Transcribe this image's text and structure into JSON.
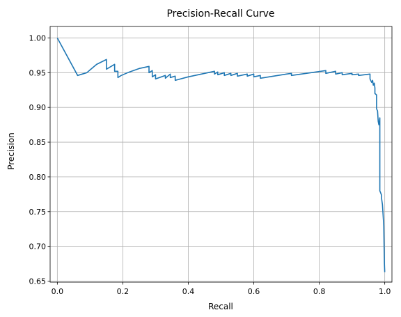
{
  "chart_data": {
    "type": "line",
    "title": "Precision-Recall Curve",
    "xlabel": "Recall",
    "ylabel": "Precision",
    "xlim": [
      -0.022,
      1.022
    ],
    "ylim": [
      0.6485,
      1.0165
    ],
    "grid": true,
    "line_color": "#1f77b4",
    "x_ticks": [
      0.0,
      0.2,
      0.4,
      0.6,
      0.8,
      1.0
    ],
    "x_tick_labels": [
      "0.0",
      "0.2",
      "0.4",
      "0.6",
      "0.8",
      "1.0"
    ],
    "y_ticks": [
      0.65,
      0.7,
      0.75,
      0.8,
      0.85,
      0.9,
      0.95,
      1.0
    ],
    "y_tick_labels": [
      "0.65",
      "0.70",
      "0.75",
      "0.80",
      "0.85",
      "0.90",
      "0.95",
      "1.00"
    ],
    "series": [
      {
        "x": [
          0.0,
          0.062,
          0.09,
          0.12,
          0.15,
          0.15,
          0.175,
          0.175,
          0.185,
          0.185,
          0.195,
          0.22,
          0.25,
          0.28,
          0.28,
          0.29,
          0.29,
          0.3,
          0.3,
          0.33,
          0.33,
          0.345,
          0.345,
          0.36,
          0.36,
          0.4,
          0.44,
          0.48,
          0.48,
          0.49,
          0.49,
          0.51,
          0.51,
          0.53,
          0.53,
          0.55,
          0.55,
          0.58,
          0.58,
          0.6,
          0.6,
          0.62,
          0.62,
          0.66,
          0.7,
          0.715,
          0.715,
          0.76,
          0.82,
          0.82,
          0.85,
          0.85,
          0.87,
          0.87,
          0.9,
          0.9,
          0.92,
          0.92,
          0.955,
          0.955,
          0.96,
          0.963,
          0.965,
          0.968,
          0.97,
          0.97,
          0.975,
          0.975,
          0.978,
          0.98,
          0.982,
          0.985,
          0.985,
          0.99,
          0.99,
          0.993,
          0.995,
          0.997,
          0.998,
          0.999,
          1.0
        ],
        "y": [
          1.0,
          0.946,
          0.95,
          0.962,
          0.969,
          0.955,
          0.962,
          0.952,
          0.952,
          0.943,
          0.946,
          0.951,
          0.956,
          0.959,
          0.95,
          0.953,
          0.944,
          0.947,
          0.941,
          0.946,
          0.942,
          0.948,
          0.943,
          0.945,
          0.939,
          0.944,
          0.948,
          0.952,
          0.948,
          0.951,
          0.947,
          0.95,
          0.946,
          0.949,
          0.946,
          0.949,
          0.945,
          0.948,
          0.945,
          0.948,
          0.944,
          0.946,
          0.942,
          0.945,
          0.948,
          0.949,
          0.946,
          0.949,
          0.953,
          0.949,
          0.952,
          0.948,
          0.95,
          0.947,
          0.949,
          0.947,
          0.948,
          0.946,
          0.948,
          0.941,
          0.936,
          0.939,
          0.932,
          0.935,
          0.928,
          0.92,
          0.918,
          0.898,
          0.895,
          0.88,
          0.875,
          0.885,
          0.78,
          0.774,
          0.77,
          0.76,
          0.745,
          0.73,
          0.7,
          0.675,
          0.663
        ]
      }
    ]
  }
}
